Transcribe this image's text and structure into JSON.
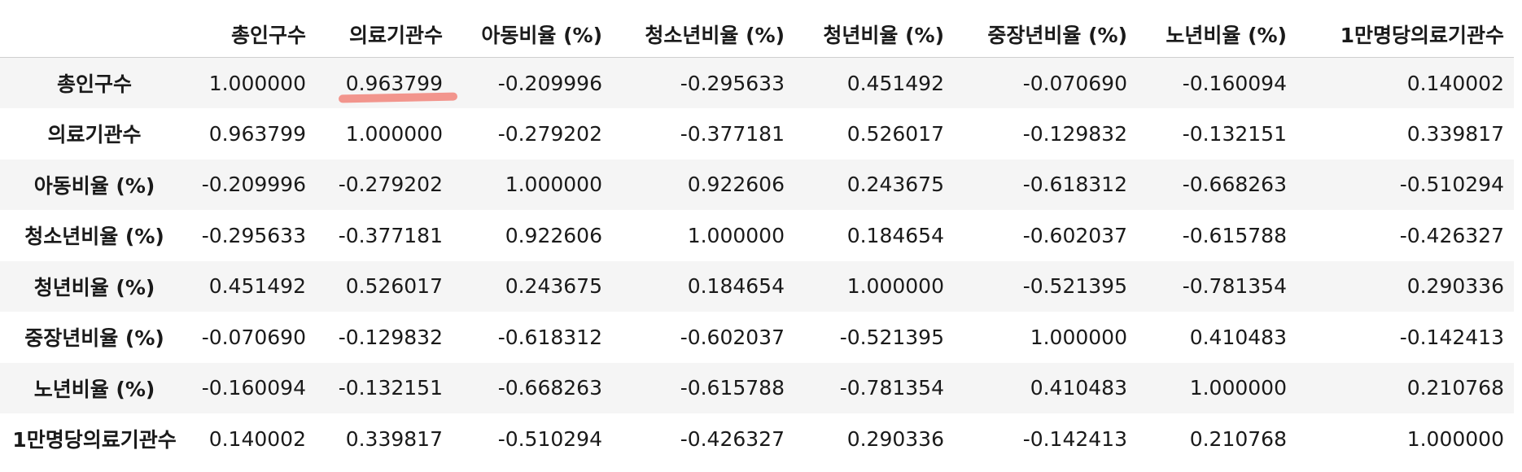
{
  "columns": [
    "총인구수",
    "의료기관수",
    "아동비율 (%)",
    "청소년비율 (%)",
    "청년비율 (%)",
    "중장년비율 (%)",
    "노년비율 (%)",
    "1만명당의료기관수"
  ],
  "rows": [
    {
      "label": "총인구수",
      "values": [
        "1.000000",
        "0.963799",
        "-0.209996",
        "-0.295633",
        "0.451492",
        "-0.070690",
        "-0.160094",
        "0.140002"
      ]
    },
    {
      "label": "의료기관수",
      "values": [
        "0.963799",
        "1.000000",
        "-0.279202",
        "-0.377181",
        "0.526017",
        "-0.129832",
        "-0.132151",
        "0.339817"
      ]
    },
    {
      "label": "아동비율 (%)",
      "values": [
        "-0.209996",
        "-0.279202",
        "1.000000",
        "0.922606",
        "0.243675",
        "-0.618312",
        "-0.668263",
        "-0.510294"
      ]
    },
    {
      "label": "청소년비율 (%)",
      "values": [
        "-0.295633",
        "-0.377181",
        "0.922606",
        "1.000000",
        "0.184654",
        "-0.602037",
        "-0.615788",
        "-0.426327"
      ]
    },
    {
      "label": "청년비율 (%)",
      "values": [
        "0.451492",
        "0.526017",
        "0.243675",
        "0.184654",
        "1.000000",
        "-0.521395",
        "-0.781354",
        "0.290336"
      ]
    },
    {
      "label": "중장년비율 (%)",
      "values": [
        "-0.070690",
        "-0.129832",
        "-0.618312",
        "-0.602037",
        "-0.521395",
        "1.000000",
        "0.410483",
        "-0.142413"
      ]
    },
    {
      "label": "노년비율 (%)",
      "values": [
        "-0.160094",
        "-0.132151",
        "-0.668263",
        "-0.615788",
        "-0.781354",
        "0.410483",
        "1.000000",
        "0.210768"
      ]
    },
    {
      "label": "1만명당의료기관수",
      "values": [
        "0.140002",
        "0.339817",
        "-0.510294",
        "-0.426327",
        "0.290336",
        "-0.142413",
        "0.210768",
        "1.000000"
      ]
    }
  ],
  "highlight": {
    "color": "#f28b82"
  }
}
